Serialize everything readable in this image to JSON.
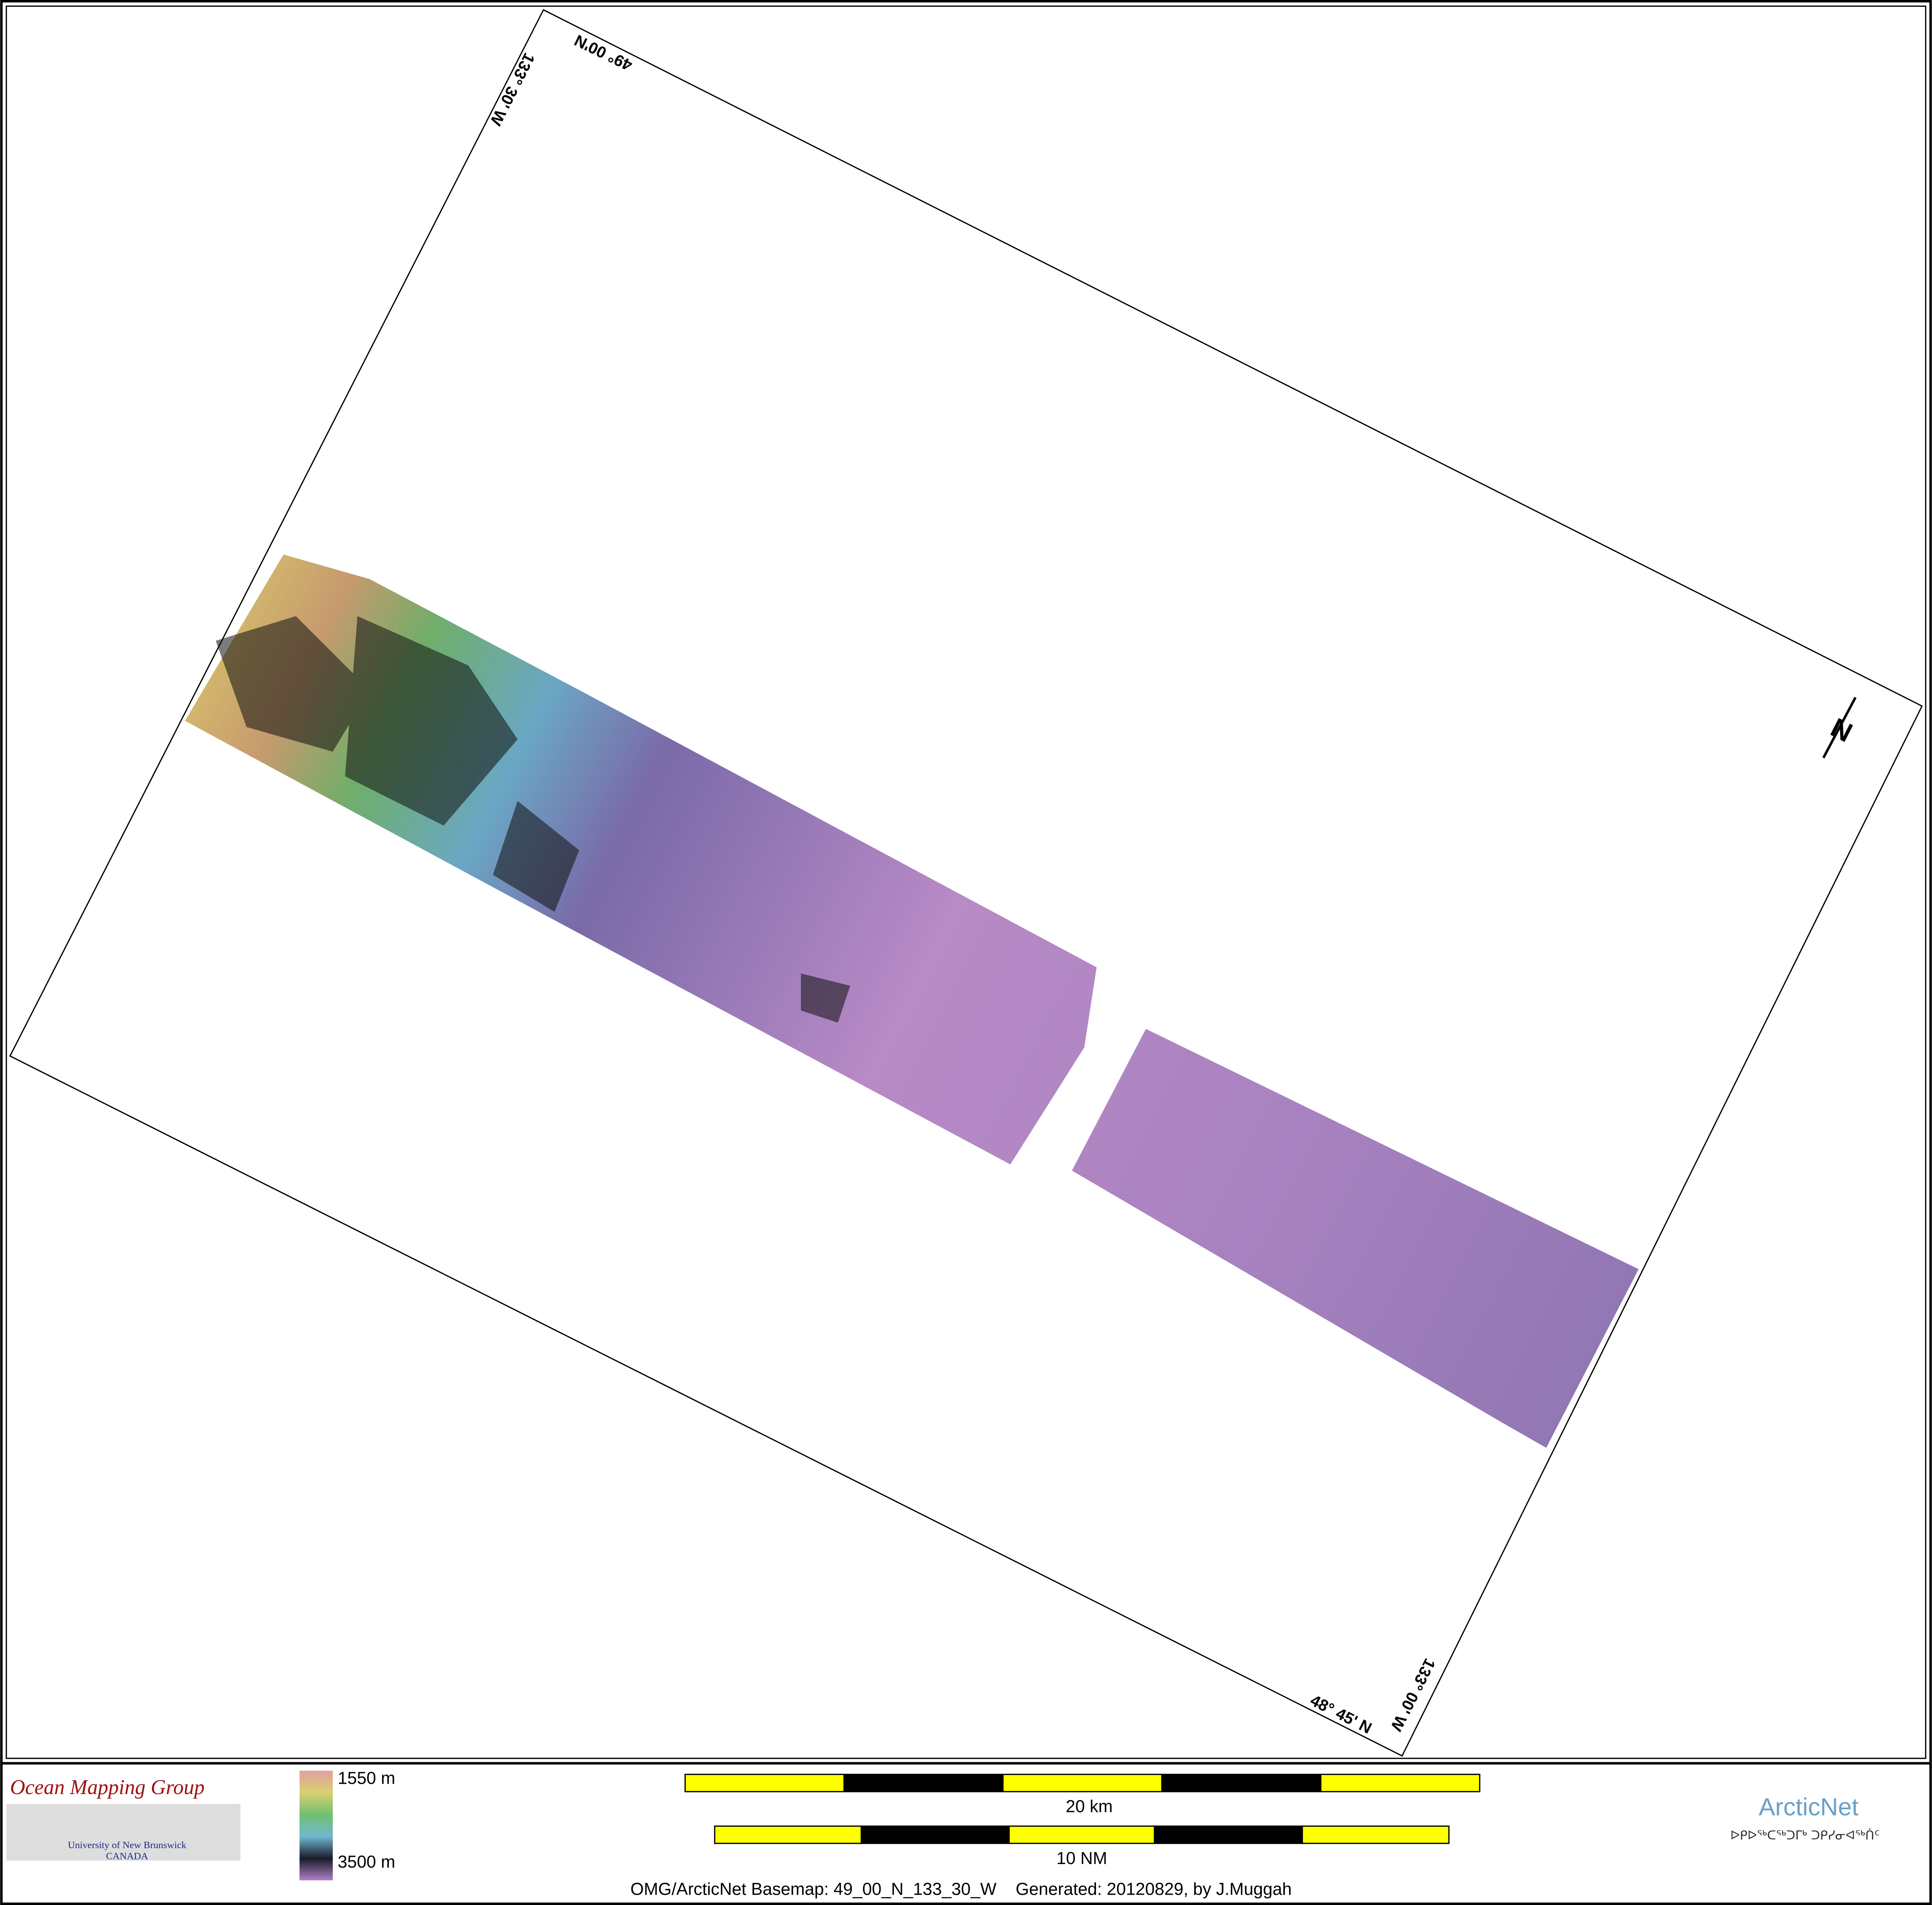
{
  "map": {
    "frame_labels": {
      "top_lat": "49° 00'N",
      "top_lon": "133° 30' W",
      "bottom_lat": "48° 45' N",
      "bottom_lon": "133° 00' W"
    },
    "legend": {
      "top": "1550 m",
      "bottom": "3500 m"
    },
    "scale_bars": {
      "km": "20 km",
      "nm": "10 NM"
    },
    "footer": "OMG/ArcticNet Basemap: 49_00_N_133_30_W    Generated: 20120829, by J.Muggah",
    "logos": {
      "omg": {
        "title": "Ocean Mapping Group",
        "line1": "University of New Brunswick",
        "line2": "CANADA"
      },
      "arcticnet": {
        "title": "ArcticNet",
        "subtitle": "ᐅᑭᐅᖅᑕᖅᑐᒥᒃ ᑐᑭᓯᓂᐊᖅᑏᑦ"
      }
    }
  }
}
